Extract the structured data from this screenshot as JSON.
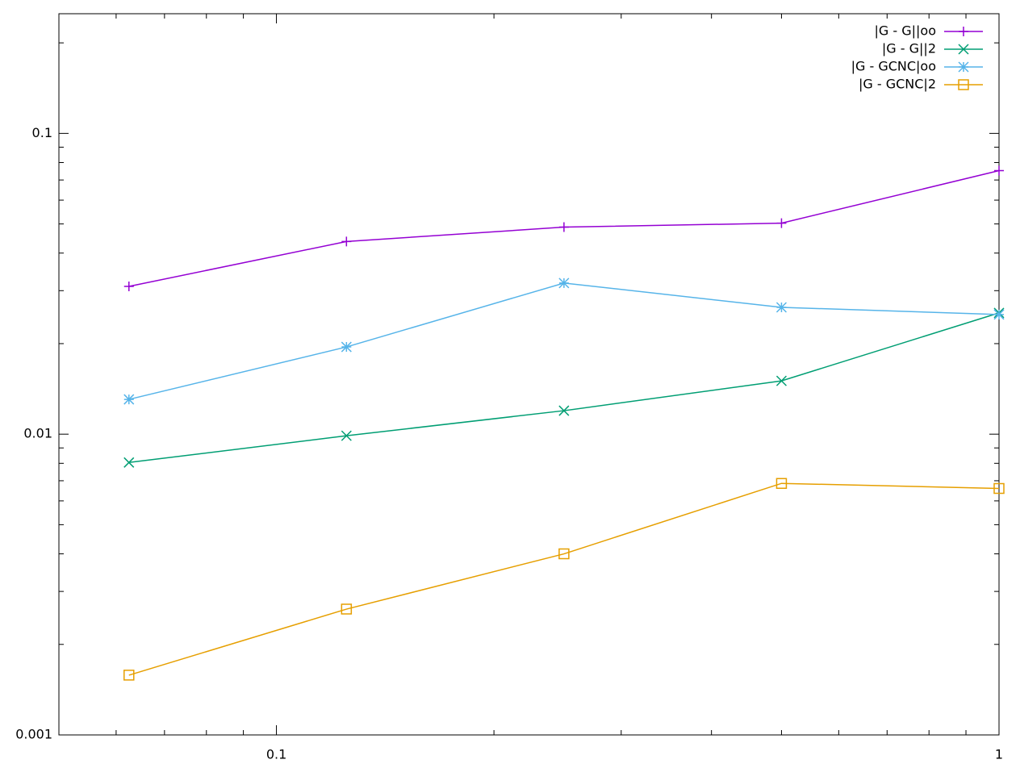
{
  "chart_data": {
    "type": "line",
    "x": [
      0.0625,
      0.125,
      0.25,
      0.5,
      1
    ],
    "series": [
      {
        "name": "|G - G||oo",
        "color": "#9400d3",
        "marker": "plus",
        "values": [
          0.031,
          0.0437,
          0.0488,
          0.0503,
          0.0752
        ]
      },
      {
        "name": "|G - G||2",
        "color": "#009e73",
        "marker": "cross",
        "values": [
          0.00805,
          0.00988,
          0.01197,
          0.01504,
          0.0253
        ]
      },
      {
        "name": "|G - GCNC|oo",
        "color": "#56b4e9",
        "marker": "star",
        "values": [
          0.01305,
          0.0195,
          0.0318,
          0.0264,
          0.025
        ]
      },
      {
        "name": "|G - GCNC|2",
        "color": "#e69f00",
        "marker": "square",
        "values": [
          0.00158,
          0.00262,
          0.004,
          0.00686,
          0.0066
        ]
      }
    ],
    "xlim": [
      0.05,
      1
    ],
    "ylim": [
      0.001,
      0.25
    ],
    "xticks": [
      0.1,
      1
    ],
    "yticks": [
      0.001,
      0.01,
      0.1
    ],
    "xscale": "log",
    "yscale": "log",
    "grid": false,
    "legend": "upper-right"
  }
}
